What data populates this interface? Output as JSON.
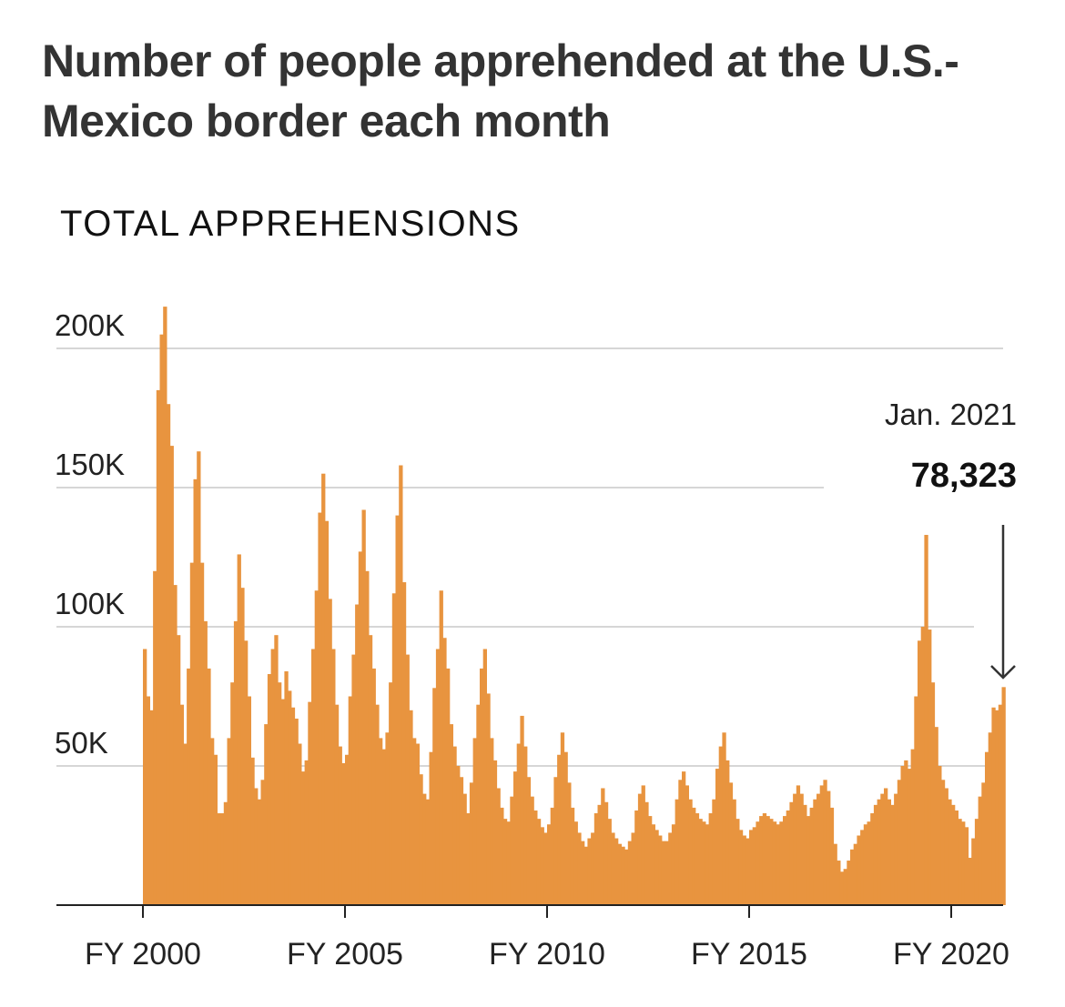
{
  "title": "Number of people apprehended at the U.S.-Mexico border each month",
  "subtitle": "TOTAL APPREHENSIONS",
  "chart_data": {
    "type": "bar",
    "title": "Number of people apprehended at the U.S.-Mexico border each month",
    "subtitle": "TOTAL APPREHENSIONS",
    "xlabel": "",
    "ylabel": "",
    "bar_color": "#E8943F",
    "grid": true,
    "ylim": [
      0,
      220000
    ],
    "xlim_fiscal_year": [
      2000,
      2021.33
    ],
    "y_ticks": [
      {
        "value": 50000,
        "label": "50K"
      },
      {
        "value": 100000,
        "label": "100K"
      },
      {
        "value": 150000,
        "label": "150K"
      },
      {
        "value": 200000,
        "label": "200K"
      }
    ],
    "x_ticks": [
      {
        "value": 2000,
        "label": "FY 2000"
      },
      {
        "value": 2005,
        "label": "FY 2005"
      },
      {
        "value": 2010,
        "label": "FY 2010"
      },
      {
        "value": 2015,
        "label": "FY 2015"
      },
      {
        "value": 2020,
        "label": "FY 2020"
      }
    ],
    "annotation": {
      "date": "Jan. 2021",
      "value": "78,323"
    },
    "x": [
      "1999-10",
      "1999-11",
      "1999-12",
      "2000-01",
      "2000-02",
      "2000-03",
      "2000-04",
      "2000-05",
      "2000-06",
      "2000-07",
      "2000-08",
      "2000-09",
      "2000-10",
      "2000-11",
      "2000-12",
      "2001-01",
      "2001-02",
      "2001-03",
      "2001-04",
      "2001-05",
      "2001-06",
      "2001-07",
      "2001-08",
      "2001-09",
      "2001-10",
      "2001-11",
      "2001-12",
      "2002-01",
      "2002-02",
      "2002-03",
      "2002-04",
      "2002-05",
      "2002-06",
      "2002-07",
      "2002-08",
      "2002-09",
      "2002-10",
      "2002-11",
      "2002-12",
      "2003-01",
      "2003-02",
      "2003-03",
      "2003-04",
      "2003-05",
      "2003-06",
      "2003-07",
      "2003-08",
      "2003-09",
      "2003-10",
      "2003-11",
      "2003-12",
      "2004-01",
      "2004-02",
      "2004-03",
      "2004-04",
      "2004-05",
      "2004-06",
      "2004-07",
      "2004-08",
      "2004-09",
      "2004-10",
      "2004-11",
      "2004-12",
      "2005-01",
      "2005-02",
      "2005-03",
      "2005-04",
      "2005-05",
      "2005-06",
      "2005-07",
      "2005-08",
      "2005-09",
      "2005-10",
      "2005-11",
      "2005-12",
      "2006-01",
      "2006-02",
      "2006-03",
      "2006-04",
      "2006-05",
      "2006-06",
      "2006-07",
      "2006-08",
      "2006-09",
      "2006-10",
      "2006-11",
      "2006-12",
      "2007-01",
      "2007-02",
      "2007-03",
      "2007-04",
      "2007-05",
      "2007-06",
      "2007-07",
      "2007-08",
      "2007-09",
      "2007-10",
      "2007-11",
      "2007-12",
      "2008-01",
      "2008-02",
      "2008-03",
      "2008-04",
      "2008-05",
      "2008-06",
      "2008-07",
      "2008-08",
      "2008-09",
      "2008-10",
      "2008-11",
      "2008-12",
      "2009-01",
      "2009-02",
      "2009-03",
      "2009-04",
      "2009-05",
      "2009-06",
      "2009-07",
      "2009-08",
      "2009-09",
      "2009-10",
      "2009-11",
      "2009-12",
      "2010-01",
      "2010-02",
      "2010-03",
      "2010-04",
      "2010-05",
      "2010-06",
      "2010-07",
      "2010-08",
      "2010-09",
      "2010-10",
      "2010-11",
      "2010-12",
      "2011-01",
      "2011-02",
      "2011-03",
      "2011-04",
      "2011-05",
      "2011-06",
      "2011-07",
      "2011-08",
      "2011-09",
      "2011-10",
      "2011-11",
      "2011-12",
      "2012-01",
      "2012-02",
      "2012-03",
      "2012-04",
      "2012-05",
      "2012-06",
      "2012-07",
      "2012-08",
      "2012-09",
      "2012-10",
      "2012-11",
      "2012-12",
      "2013-01",
      "2013-02",
      "2013-03",
      "2013-04",
      "2013-05",
      "2013-06",
      "2013-07",
      "2013-08",
      "2013-09",
      "2013-10",
      "2013-11",
      "2013-12",
      "2014-01",
      "2014-02",
      "2014-03",
      "2014-04",
      "2014-05",
      "2014-06",
      "2014-07",
      "2014-08",
      "2014-09",
      "2014-10",
      "2014-11",
      "2014-12",
      "2015-01",
      "2015-02",
      "2015-03",
      "2015-04",
      "2015-05",
      "2015-06",
      "2015-07",
      "2015-08",
      "2015-09",
      "2015-10",
      "2015-11",
      "2015-12",
      "2016-01",
      "2016-02",
      "2016-03",
      "2016-04",
      "2016-05",
      "2016-06",
      "2016-07",
      "2016-08",
      "2016-09",
      "2016-10",
      "2016-11",
      "2016-12",
      "2017-01",
      "2017-02",
      "2017-03",
      "2017-04",
      "2017-05",
      "2017-06",
      "2017-07",
      "2017-08",
      "2017-09",
      "2017-10",
      "2017-11",
      "2017-12",
      "2018-01",
      "2018-02",
      "2018-03",
      "2018-04",
      "2018-05",
      "2018-06",
      "2018-07",
      "2018-08",
      "2018-09",
      "2018-10",
      "2018-11",
      "2018-12",
      "2019-01",
      "2019-02",
      "2019-03",
      "2019-04",
      "2019-05",
      "2019-06",
      "2019-07",
      "2019-08",
      "2019-09",
      "2019-10",
      "2019-11",
      "2019-12",
      "2020-01",
      "2020-02",
      "2020-03",
      "2020-04",
      "2020-05",
      "2020-06",
      "2020-07",
      "2020-08",
      "2020-09",
      "2020-10",
      "2020-11",
      "2020-12",
      "2021-01"
    ],
    "values": [
      92000,
      75000,
      70000,
      120000,
      185000,
      205000,
      215000,
      180000,
      165000,
      115000,
      97000,
      72000,
      58000,
      85000,
      123000,
      153000,
      163000,
      123000,
      102000,
      85000,
      60000,
      54000,
      33000,
      33000,
      37000,
      60000,
      80000,
      102000,
      126000,
      114000,
      95000,
      75000,
      53000,
      42000,
      38000,
      45000,
      65000,
      83000,
      92000,
      97000,
      80000,
      74000,
      84000,
      77000,
      71000,
      67000,
      58000,
      48000,
      52000,
      73000,
      92000,
      113000,
      141000,
      155000,
      138000,
      110000,
      92000,
      72000,
      57000,
      51000,
      54000,
      75000,
      90000,
      108000,
      127000,
      142000,
      120000,
      97000,
      85000,
      72000,
      60000,
      56000,
      62000,
      80000,
      112000,
      140000,
      158000,
      116000,
      90000,
      70000,
      60000,
      58000,
      47000,
      40000,
      38000,
      55000,
      78000,
      92000,
      113000,
      96000,
      85000,
      65000,
      57000,
      50000,
      46000,
      40000,
      33000,
      44000,
      60000,
      72000,
      85000,
      92000,
      76000,
      60000,
      52000,
      42000,
      35000,
      31000,
      30000,
      39000,
      48000,
      58000,
      68000,
      57000,
      46000,
      39000,
      34000,
      31000,
      28000,
      26000,
      29000,
      35000,
      46000,
      54000,
      62000,
      55000,
      44000,
      35000,
      30000,
      26000,
      23000,
      21000,
      24000,
      26000,
      33000,
      36000,
      42000,
      37000,
      31000,
      26000,
      24000,
      22000,
      21000,
      20000,
      23000,
      26000,
      34000,
      40000,
      43000,
      37000,
      32000,
      29000,
      27000,
      25000,
      23000,
      23000,
      26000,
      29000,
      38000,
      45000,
      48000,
      43000,
      38000,
      35000,
      33000,
      31000,
      30000,
      29000,
      33000,
      38000,
      49000,
      57000,
      62000,
      52000,
      44000,
      38000,
      31000,
      27000,
      25000,
      24000,
      27000,
      28000,
      30000,
      32000,
      33000,
      32000,
      31000,
      30000,
      29000,
      30000,
      32000,
      34000,
      37000,
      40000,
      43000,
      40000,
      36000,
      32000,
      35000,
      38000,
      40000,
      43000,
      45000,
      41000,
      35000,
      22000,
      16000,
      12000,
      13000,
      16000,
      20000,
      22000,
      25000,
      27000,
      29000,
      30000,
      33000,
      36000,
      38000,
      40000,
      42000,
      38000,
      36000,
      40000,
      45000,
      50000,
      52000,
      49000,
      56000,
      75000,
      95000,
      100000,
      133000,
      99000,
      80000,
      64000,
      50000,
      45000,
      42000,
      38000,
      36000,
      34000,
      31000,
      30000,
      28000,
      17000,
      24000,
      31000,
      39000,
      44000,
      55000,
      62000,
      71000,
      70000,
      72000,
      78323
    ]
  }
}
